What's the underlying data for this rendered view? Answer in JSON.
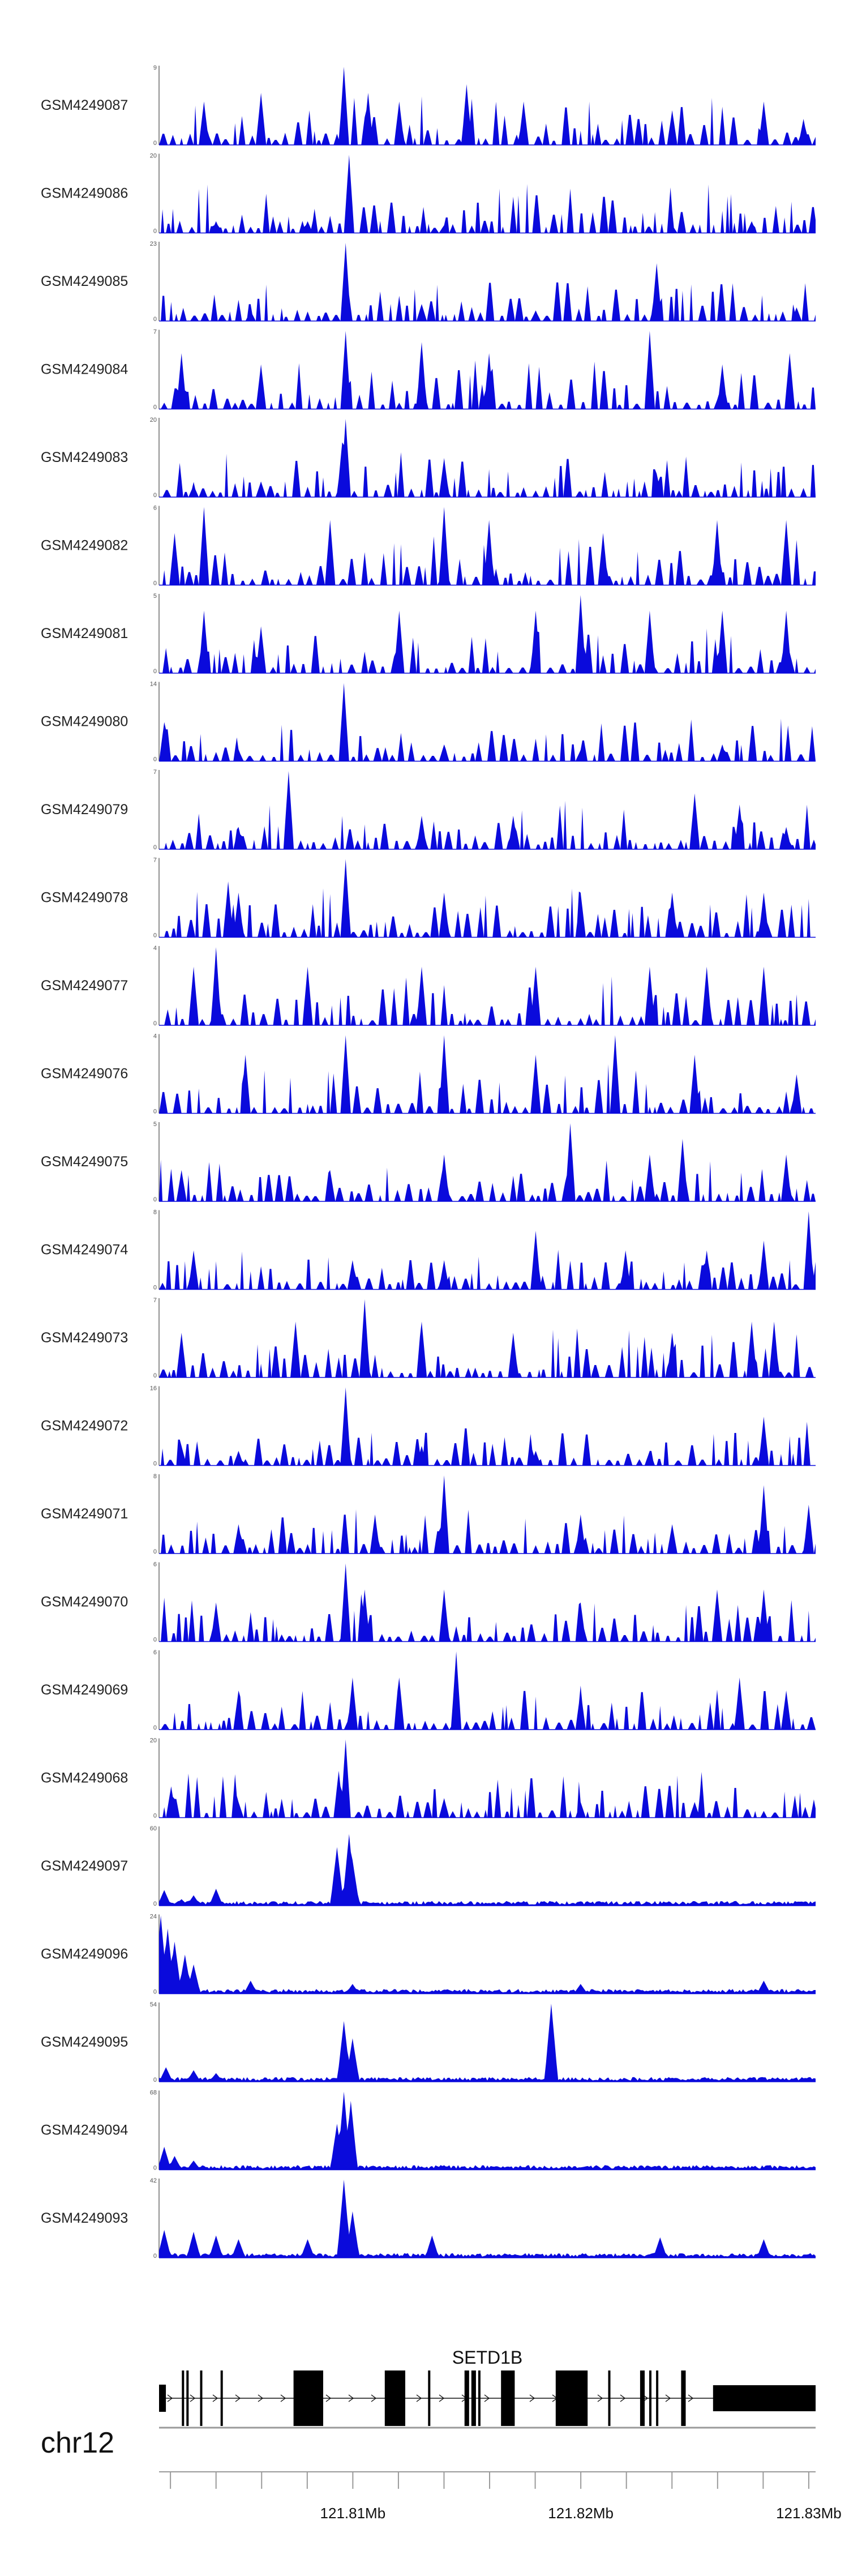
{
  "chart_data": {
    "type": "area",
    "title": "",
    "xlabel": "",
    "ylabel": "",
    "chromosome": "chr12",
    "x_range_mb": [
      121.8015,
      121.8303
    ],
    "color": "#0a0adc",
    "tracks": [
      {
        "name": "GSM4249087",
        "ymax": 9,
        "ymin": 0,
        "profile": "sparse",
        "peaks": [
          [
            121.8096,
            9
          ],
          [
            121.8035,
            5
          ],
          [
            121.806,
            6
          ],
          [
            121.8107,
            6
          ],
          [
            121.812,
            5
          ],
          [
            121.815,
            7
          ],
          [
            121.8175,
            5
          ],
          [
            121.824,
            4
          ],
          [
            121.828,
            5
          ],
          [
            121.8298,
            3
          ]
        ]
      },
      {
        "name": "GSM4249086",
        "ymax": 20,
        "ymin": 0,
        "profile": "sparse",
        "peaks": [
          [
            121.8098,
            20
          ],
          [
            121.804,
            3
          ],
          [
            121.808,
            3
          ],
          [
            121.814,
            2
          ],
          [
            121.824,
            2
          ],
          [
            121.8275,
            3
          ]
        ]
      },
      {
        "name": "GSM4249085",
        "ymax": 23,
        "ymin": 0,
        "profile": "sparse",
        "peaks": [
          [
            121.8097,
            23
          ],
          [
            121.8233,
            17
          ],
          [
            121.8055,
            3
          ],
          [
            121.813,
            5
          ],
          [
            121.818,
            3
          ],
          [
            121.8295,
            4
          ]
        ]
      },
      {
        "name": "GSM4249084",
        "ymax": 7,
        "ymin": 0,
        "profile": "sparse",
        "peaks": [
          [
            121.8097,
            7
          ],
          [
            121.8025,
            5
          ],
          [
            121.806,
            4
          ],
          [
            121.813,
            6
          ],
          [
            121.816,
            5
          ],
          [
            121.823,
            7
          ],
          [
            121.8262,
            4
          ],
          [
            121.8292,
            5
          ]
        ]
      },
      {
        "name": "GSM4249083",
        "ymax": 20,
        "ymin": 0,
        "profile": "sparse",
        "peaks": [
          [
            121.8097,
            20
          ],
          [
            121.8095,
            14
          ],
          [
            121.814,
            10
          ],
          [
            121.8233,
            6
          ],
          [
            121.803,
            3
          ],
          [
            121.806,
            4
          ]
        ]
      },
      {
        "name": "GSM4249082",
        "ymax": 6,
        "ymin": 0,
        "profile": "sparse",
        "peaks": [
          [
            121.8035,
            6
          ],
          [
            121.814,
            6
          ],
          [
            121.809,
            5
          ],
          [
            121.816,
            5
          ],
          [
            121.821,
            4
          ],
          [
            121.826,
            5
          ],
          [
            121.829,
            5
          ],
          [
            121.8022,
            4
          ]
        ]
      },
      {
        "name": "GSM4249081",
        "ymax": 5,
        "ymin": 0,
        "profile": "sparse",
        "peaks": [
          [
            121.82,
            5
          ],
          [
            121.8035,
            4
          ],
          [
            121.806,
            3
          ],
          [
            121.812,
            4
          ],
          [
            121.818,
            4
          ],
          [
            121.823,
            4
          ],
          [
            121.8262,
            4
          ],
          [
            121.829,
            4
          ]
        ]
      },
      {
        "name": "GSM4249080",
        "ymax": 14,
        "ymin": 0,
        "profile": "sparse",
        "peaks": [
          [
            121.8096,
            14
          ],
          [
            121.8017,
            7
          ],
          [
            121.805,
            2
          ],
          [
            121.814,
            3
          ],
          [
            121.82,
            2
          ],
          [
            121.8262,
            3
          ]
        ]
      },
      {
        "name": "GSM4249079",
        "ymax": 7,
        "ymin": 0,
        "profile": "sparse",
        "peaks": [
          [
            121.8072,
            7
          ],
          [
            121.805,
            2
          ],
          [
            121.813,
            3
          ],
          [
            121.817,
            3
          ],
          [
            121.825,
            5
          ],
          [
            121.827,
            4
          ],
          [
            121.829,
            2
          ]
        ]
      },
      {
        "name": "GSM4249078",
        "ymax": 7,
        "ymin": 0,
        "profile": "sparse",
        "peaks": [
          [
            121.8097,
            7
          ],
          [
            121.8045,
            5
          ],
          [
            121.805,
            4
          ],
          [
            121.814,
            4
          ],
          [
            121.82,
            4
          ],
          [
            121.824,
            4
          ],
          [
            121.828,
            4
          ]
        ]
      },
      {
        "name": "GSM4249077",
        "ymax": 4,
        "ymin": 0,
        "profile": "sparse",
        "peaks": [
          [
            121.804,
            4
          ],
          [
            121.803,
            3
          ],
          [
            121.808,
            3
          ],
          [
            121.813,
            3
          ],
          [
            121.818,
            3
          ],
          [
            121.823,
            3
          ],
          [
            121.8255,
            3
          ],
          [
            121.828,
            3
          ]
        ]
      },
      {
        "name": "GSM4249076",
        "ymax": 4,
        "ymin": 0,
        "profile": "sparse",
        "peaks": [
          [
            121.8097,
            4
          ],
          [
            121.814,
            4
          ],
          [
            121.8215,
            4
          ],
          [
            121.8053,
            3
          ],
          [
            121.818,
            3
          ],
          [
            121.825,
            3
          ],
          [
            121.8295,
            2
          ]
        ]
      },
      {
        "name": "GSM4249075",
        "ymax": 5,
        "ymin": 0,
        "profile": "sparse",
        "peaks": [
          [
            121.8195,
            5
          ],
          [
            121.8245,
            4
          ],
          [
            121.823,
            3
          ],
          [
            121.809,
            2
          ],
          [
            121.814,
            3
          ],
          [
            121.829,
            3
          ],
          [
            121.8025,
            2
          ]
        ]
      },
      {
        "name": "GSM4249074",
        "ymax": 8,
        "ymin": 0,
        "profile": "sparse",
        "peaks": [
          [
            121.83,
            8
          ],
          [
            121.818,
            6
          ],
          [
            121.822,
            4
          ],
          [
            121.8255,
            4
          ],
          [
            121.828,
            5
          ],
          [
            121.803,
            4
          ],
          [
            121.81,
            3
          ],
          [
            121.814,
            3
          ]
        ]
      },
      {
        "name": "GSM4249073",
        "ymax": 7,
        "ymin": 0,
        "profile": "sparse",
        "peaks": [
          [
            121.8105,
            7
          ],
          [
            121.8075,
            5
          ],
          [
            121.813,
            5
          ],
          [
            121.817,
            4
          ],
          [
            121.824,
            4
          ],
          [
            121.8275,
            5
          ],
          [
            121.8285,
            5
          ],
          [
            121.8025,
            4
          ]
        ]
      },
      {
        "name": "GSM4249072",
        "ymax": 16,
        "ymin": 0,
        "profile": "sparse",
        "peaks": [
          [
            121.8097,
            16
          ],
          [
            121.828,
            10
          ],
          [
            121.8025,
            4
          ],
          [
            121.805,
            3
          ],
          [
            121.813,
            4
          ],
          [
            121.818,
            3
          ],
          [
            121.823,
            3
          ]
        ]
      },
      {
        "name": "GSM4249071",
        "ymax": 8,
        "ymin": 0,
        "profile": "sparse",
        "peaks": [
          [
            121.814,
            8
          ],
          [
            121.828,
            7
          ],
          [
            121.811,
            4
          ],
          [
            121.82,
            4
          ],
          [
            121.824,
            3
          ],
          [
            121.83,
            5
          ],
          [
            121.805,
            3
          ]
        ]
      },
      {
        "name": "GSM4249070",
        "ymax": 6,
        "ymin": 0,
        "profile": "sparse",
        "peaks": [
          [
            121.8097,
            6
          ],
          [
            121.8105,
            4
          ],
          [
            121.814,
            4
          ],
          [
            121.82,
            3
          ],
          [
            121.826,
            4
          ],
          [
            121.828,
            4
          ],
          [
            121.804,
            3
          ]
        ]
      },
      {
        "name": "GSM4249069",
        "ymax": 6,
        "ymin": 0,
        "profile": "sparse",
        "peaks": [
          [
            121.8145,
            6
          ],
          [
            121.812,
            4
          ],
          [
            121.81,
            4
          ],
          [
            121.805,
            3
          ],
          [
            121.82,
            3
          ],
          [
            121.827,
            4
          ],
          [
            121.829,
            3
          ]
        ]
      },
      {
        "name": "GSM4249068",
        "ymax": 20,
        "ymin": 0,
        "profile": "sparse",
        "peaks": [
          [
            121.8097,
            20
          ],
          [
            121.8094,
            12
          ],
          [
            121.802,
            8
          ],
          [
            121.805,
            4
          ],
          [
            121.814,
            5
          ],
          [
            121.82,
            4
          ],
          [
            121.825,
            4
          ]
        ]
      },
      {
        "name": "GSM4249097",
        "ymax": 60,
        "ymin": 0,
        "profile": "dense",
        "peaks": [
          [
            121.8098,
            55
          ],
          [
            121.8093,
            45
          ],
          [
            121.81,
            35
          ],
          [
            121.8017,
            12
          ],
          [
            121.803,
            8
          ],
          [
            121.804,
            13
          ],
          [
            121.8025,
            5
          ]
        ]
      },
      {
        "name": "GSM4249096",
        "ymax": 24,
        "ymin": 0,
        "profile": "dense",
        "peaks": [
          [
            121.8016,
            24
          ],
          [
            121.8019,
            20
          ],
          [
            121.8022,
            16
          ],
          [
            121.8026,
            12
          ],
          [
            121.803,
            9
          ],
          [
            121.8055,
            4
          ],
          [
            121.828,
            4
          ],
          [
            121.81,
            3
          ],
          [
            121.82,
            3
          ]
        ]
      },
      {
        "name": "GSM4249095",
        "ymax": 54,
        "ymin": 0,
        "profile": "dense",
        "peaks": [
          [
            121.8096,
            42
          ],
          [
            121.8187,
            54
          ],
          [
            121.81,
            30
          ],
          [
            121.8018,
            10
          ],
          [
            121.803,
            8
          ],
          [
            121.804,
            6
          ]
        ]
      },
      {
        "name": "GSM4249094",
        "ymax": 68,
        "ymin": 0,
        "profile": "dense",
        "peaks": [
          [
            121.8096,
            68
          ],
          [
            121.8099,
            60
          ],
          [
            121.8093,
            40
          ],
          [
            121.8017,
            20
          ],
          [
            121.8022,
            12
          ],
          [
            121.803,
            8
          ]
        ]
      },
      {
        "name": "GSM4249093",
        "ymax": 42,
        "ymin": 0,
        "profile": "dense",
        "peaks": [
          [
            121.8096,
            42
          ],
          [
            121.81,
            25
          ],
          [
            121.8017,
            15
          ],
          [
            121.803,
            14
          ],
          [
            121.804,
            12
          ],
          [
            121.805,
            10
          ],
          [
            121.808,
            10
          ],
          [
            121.8135,
            12
          ],
          [
            121.8235,
            11
          ],
          [
            121.828,
            10
          ]
        ]
      }
    ],
    "gene": {
      "name": "SETD1B",
      "strand": "+",
      "start_mb": 121.8015,
      "end_mb": 121.8303,
      "exons_mb": [
        [
          121.8015,
          121.8018
        ],
        [
          121.8025,
          121.8026
        ],
        [
          121.8027,
          121.8028
        ],
        [
          121.8033,
          121.8034
        ],
        [
          121.8042,
          121.8043
        ],
        [
          121.8074,
          121.8087
        ],
        [
          121.8114,
          121.8123
        ],
        [
          121.8133,
          121.8134
        ],
        [
          121.8149,
          121.8151
        ],
        [
          121.8152,
          121.8154
        ],
        [
          121.8155,
          121.8156
        ],
        [
          121.8165,
          121.8171
        ],
        [
          121.8189,
          121.8203
        ],
        [
          121.8212,
          121.8213
        ],
        [
          121.8226,
          121.8228
        ],
        [
          121.823,
          121.8231
        ],
        [
          121.8233,
          121.8234
        ],
        [
          121.8244,
          121.8246
        ],
        [
          121.8258,
          121.8303
        ]
      ]
    },
    "x_ticks_mb": [
      121.81,
      121.82,
      121.83
    ],
    "x_tick_labels": [
      "121.81Mb",
      "121.82Mb",
      "121.83Mb"
    ],
    "minor_ticks_mb": [
      121.802,
      121.804,
      121.806,
      121.808,
      121.81,
      121.812,
      121.814,
      121.816,
      121.818,
      121.82,
      121.822,
      121.824,
      121.826,
      121.828,
      121.83
    ]
  }
}
